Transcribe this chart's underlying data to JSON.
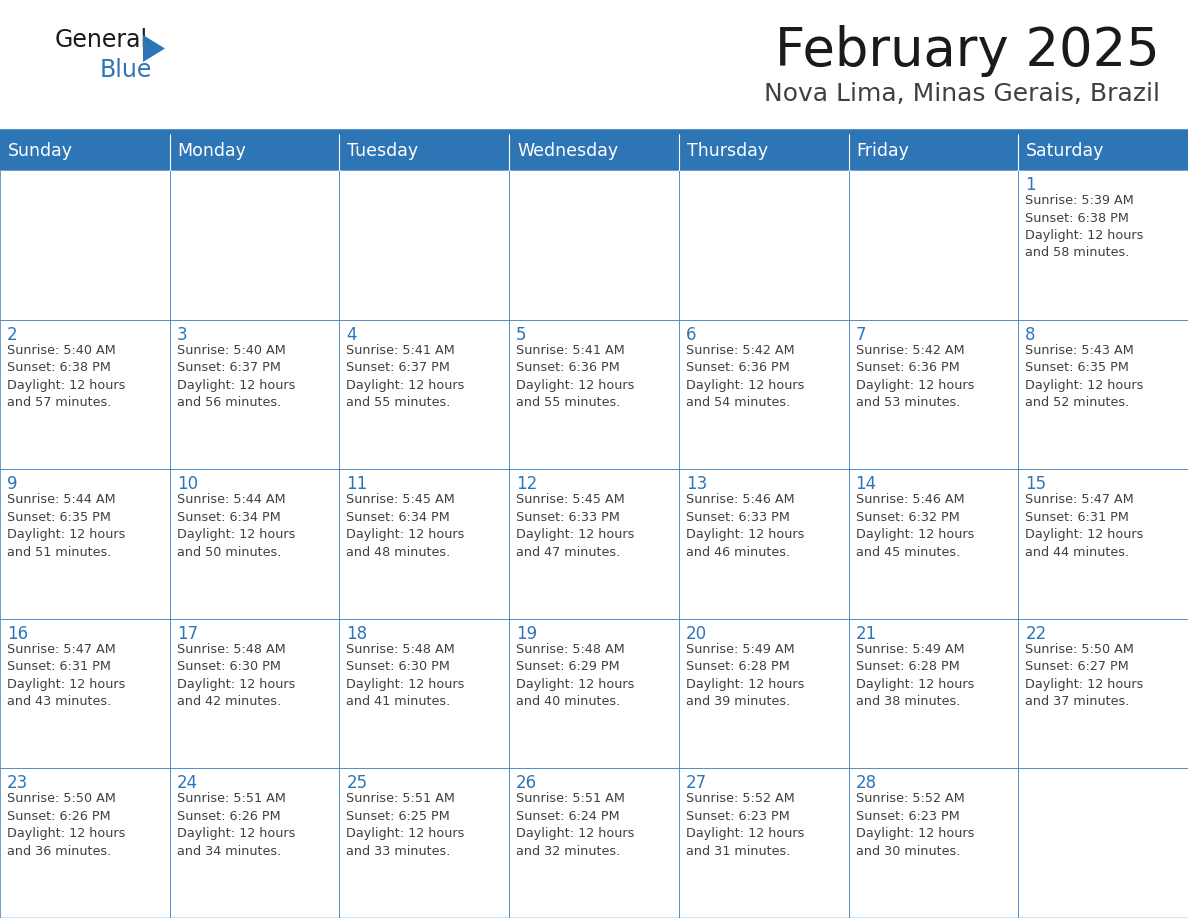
{
  "title": "February 2025",
  "subtitle": "Nova Lima, Minas Gerais, Brazil",
  "header_bg": "#2E75B6",
  "header_text_color": "#FFFFFF",
  "cell_bg": "#FFFFFF",
  "day_number_color": "#2E75B6",
  "cell_text_color": "#404040",
  "border_color": "#2E75B6",
  "separator_color": "#2E75B6",
  "days_of_week": [
    "Sunday",
    "Monday",
    "Tuesday",
    "Wednesday",
    "Thursday",
    "Friday",
    "Saturday"
  ],
  "weeks": [
    [
      {
        "day": null,
        "info": null
      },
      {
        "day": null,
        "info": null
      },
      {
        "day": null,
        "info": null
      },
      {
        "day": null,
        "info": null
      },
      {
        "day": null,
        "info": null
      },
      {
        "day": null,
        "info": null
      },
      {
        "day": "1",
        "info": "Sunrise: 5:39 AM\nSunset: 6:38 PM\nDaylight: 12 hours\nand 58 minutes."
      }
    ],
    [
      {
        "day": "2",
        "info": "Sunrise: 5:40 AM\nSunset: 6:38 PM\nDaylight: 12 hours\nand 57 minutes."
      },
      {
        "day": "3",
        "info": "Sunrise: 5:40 AM\nSunset: 6:37 PM\nDaylight: 12 hours\nand 56 minutes."
      },
      {
        "day": "4",
        "info": "Sunrise: 5:41 AM\nSunset: 6:37 PM\nDaylight: 12 hours\nand 55 minutes."
      },
      {
        "day": "5",
        "info": "Sunrise: 5:41 AM\nSunset: 6:36 PM\nDaylight: 12 hours\nand 55 minutes."
      },
      {
        "day": "6",
        "info": "Sunrise: 5:42 AM\nSunset: 6:36 PM\nDaylight: 12 hours\nand 54 minutes."
      },
      {
        "day": "7",
        "info": "Sunrise: 5:42 AM\nSunset: 6:36 PM\nDaylight: 12 hours\nand 53 minutes."
      },
      {
        "day": "8",
        "info": "Sunrise: 5:43 AM\nSunset: 6:35 PM\nDaylight: 12 hours\nand 52 minutes."
      }
    ],
    [
      {
        "day": "9",
        "info": "Sunrise: 5:44 AM\nSunset: 6:35 PM\nDaylight: 12 hours\nand 51 minutes."
      },
      {
        "day": "10",
        "info": "Sunrise: 5:44 AM\nSunset: 6:34 PM\nDaylight: 12 hours\nand 50 minutes."
      },
      {
        "day": "11",
        "info": "Sunrise: 5:45 AM\nSunset: 6:34 PM\nDaylight: 12 hours\nand 48 minutes."
      },
      {
        "day": "12",
        "info": "Sunrise: 5:45 AM\nSunset: 6:33 PM\nDaylight: 12 hours\nand 47 minutes."
      },
      {
        "day": "13",
        "info": "Sunrise: 5:46 AM\nSunset: 6:33 PM\nDaylight: 12 hours\nand 46 minutes."
      },
      {
        "day": "14",
        "info": "Sunrise: 5:46 AM\nSunset: 6:32 PM\nDaylight: 12 hours\nand 45 minutes."
      },
      {
        "day": "15",
        "info": "Sunrise: 5:47 AM\nSunset: 6:31 PM\nDaylight: 12 hours\nand 44 minutes."
      }
    ],
    [
      {
        "day": "16",
        "info": "Sunrise: 5:47 AM\nSunset: 6:31 PM\nDaylight: 12 hours\nand 43 minutes."
      },
      {
        "day": "17",
        "info": "Sunrise: 5:48 AM\nSunset: 6:30 PM\nDaylight: 12 hours\nand 42 minutes."
      },
      {
        "day": "18",
        "info": "Sunrise: 5:48 AM\nSunset: 6:30 PM\nDaylight: 12 hours\nand 41 minutes."
      },
      {
        "day": "19",
        "info": "Sunrise: 5:48 AM\nSunset: 6:29 PM\nDaylight: 12 hours\nand 40 minutes."
      },
      {
        "day": "20",
        "info": "Sunrise: 5:49 AM\nSunset: 6:28 PM\nDaylight: 12 hours\nand 39 minutes."
      },
      {
        "day": "21",
        "info": "Sunrise: 5:49 AM\nSunset: 6:28 PM\nDaylight: 12 hours\nand 38 minutes."
      },
      {
        "day": "22",
        "info": "Sunrise: 5:50 AM\nSunset: 6:27 PM\nDaylight: 12 hours\nand 37 minutes."
      }
    ],
    [
      {
        "day": "23",
        "info": "Sunrise: 5:50 AM\nSunset: 6:26 PM\nDaylight: 12 hours\nand 36 minutes."
      },
      {
        "day": "24",
        "info": "Sunrise: 5:51 AM\nSunset: 6:26 PM\nDaylight: 12 hours\nand 34 minutes."
      },
      {
        "day": "25",
        "info": "Sunrise: 5:51 AM\nSunset: 6:25 PM\nDaylight: 12 hours\nand 33 minutes."
      },
      {
        "day": "26",
        "info": "Sunrise: 5:51 AM\nSunset: 6:24 PM\nDaylight: 12 hours\nand 32 minutes."
      },
      {
        "day": "27",
        "info": "Sunrise: 5:52 AM\nSunset: 6:23 PM\nDaylight: 12 hours\nand 31 minutes."
      },
      {
        "day": "28",
        "info": "Sunrise: 5:52 AM\nSunset: 6:23 PM\nDaylight: 12 hours\nand 30 minutes."
      },
      {
        "day": null,
        "info": null
      }
    ]
  ],
  "logo_color_general": "#1a1a1a",
  "logo_color_blue": "#2E75B6",
  "title_fontsize": 38,
  "subtitle_fontsize": 18,
  "header_fontsize": 12.5,
  "day_number_fontsize": 12,
  "cell_info_fontsize": 9.2
}
